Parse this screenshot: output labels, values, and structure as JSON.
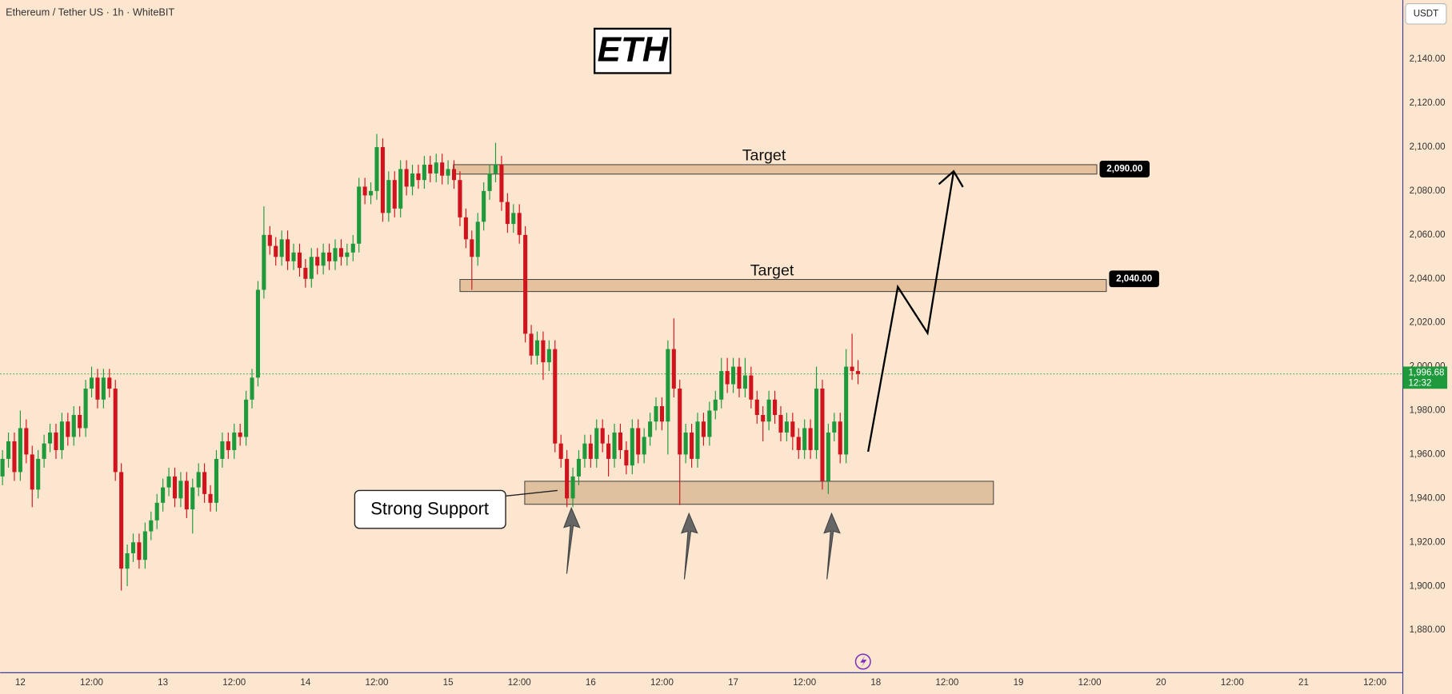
{
  "header": "Ethereum / Tether US · 1h · WhiteBIT",
  "chart_data": {
    "type": "candlestick",
    "title": "ETH",
    "currency": "USDT",
    "up_color": "#1e9a3c",
    "down_color": "#d0141e",
    "x": [
      -3,
      -2,
      -1,
      0,
      1,
      2,
      3,
      4,
      5,
      6,
      7,
      8,
      9,
      10,
      11,
      12,
      13,
      14,
      15,
      16,
      17,
      18,
      19,
      20,
      21,
      22,
      23,
      24,
      25,
      26,
      27,
      28,
      29,
      30,
      31,
      32,
      33,
      34,
      35,
      36,
      37,
      38,
      39,
      40,
      41,
      42,
      43,
      44,
      45,
      46,
      47,
      48,
      49,
      50,
      51,
      52,
      53,
      54,
      55,
      56,
      57,
      58,
      59,
      60,
      61,
      62,
      63,
      64,
      65,
      66,
      67,
      68,
      69,
      70,
      71,
      72,
      73,
      74,
      75,
      76,
      77,
      78,
      79,
      80,
      81,
      82,
      83,
      84,
      85,
      86,
      87,
      88,
      89,
      90,
      91,
      92,
      93,
      94,
      95,
      96,
      97,
      98,
      99,
      100,
      101,
      102,
      103,
      104,
      105,
      106,
      107,
      108,
      109,
      110,
      111,
      112,
      113,
      114,
      115,
      116,
      117,
      118,
      119,
      120,
      121,
      122,
      123,
      124,
      125,
      126,
      127,
      128,
      129,
      130,
      131,
      132,
      133,
      134,
      135,
      136,
      137,
      138,
      139,
      140,
      141
    ],
    "ohlc": [
      [
        1950,
        1962,
        1946,
        1958
      ],
      [
        1958,
        1970,
        1954,
        1966
      ],
      [
        1966,
        1970,
        1948,
        1952
      ],
      [
        1952,
        1980,
        1948,
        1972
      ],
      [
        1972,
        1976,
        1956,
        1960
      ],
      [
        1960,
        1964,
        1936,
        1944
      ],
      [
        1944,
        1962,
        1940,
        1958
      ],
      [
        1958,
        1969,
        1954,
        1965
      ],
      [
        1965,
        1974,
        1961,
        1970
      ],
      [
        1970,
        1974,
        1958,
        1962
      ],
      [
        1962,
        1979,
        1958,
        1975
      ],
      [
        1975,
        1979,
        1964,
        1968
      ],
      [
        1968,
        1982,
        1964,
        1978
      ],
      [
        1978,
        1982,
        1968,
        1972
      ],
      [
        1972,
        1994,
        1968,
        1990
      ],
      [
        1990,
        2000,
        1986,
        1995
      ],
      [
        1995,
        1999,
        1981,
        1985
      ],
      [
        1985,
        1999,
        1981,
        1995
      ],
      [
        1995,
        1999,
        1986,
        1990
      ],
      [
        1990,
        1994,
        1948,
        1952
      ],
      [
        1952,
        1956,
        1898,
        1908
      ],
      [
        1908,
        1919,
        1900,
        1915
      ],
      [
        1915,
        1924,
        1911,
        1920
      ],
      [
        1920,
        1924,
        1908,
        1912
      ],
      [
        1912,
        1929,
        1908,
        1925
      ],
      [
        1925,
        1934,
        1921,
        1930
      ],
      [
        1930,
        1942,
        1926,
        1938
      ],
      [
        1938,
        1949,
        1934,
        1945
      ],
      [
        1945,
        1954,
        1941,
        1950
      ],
      [
        1950,
        1954,
        1936,
        1940
      ],
      [
        1940,
        1952,
        1936,
        1948
      ],
      [
        1948,
        1952,
        1931,
        1935
      ],
      [
        1935,
        1949,
        1924,
        1945
      ],
      [
        1945,
        1956,
        1941,
        1952
      ],
      [
        1952,
        1956,
        1938,
        1942
      ],
      [
        1942,
        1946,
        1934,
        1938
      ],
      [
        1938,
        1962,
        1934,
        1958
      ],
      [
        1958,
        1970,
        1954,
        1966
      ],
      [
        1966,
        1970,
        1958,
        1962
      ],
      [
        1962,
        1974,
        1958,
        1970
      ],
      [
        1970,
        1974,
        1964,
        1968
      ],
      [
        1968,
        1989,
        1964,
        1985
      ],
      [
        1985,
        1999,
        1981,
        1995
      ],
      [
        1995,
        2039,
        1991,
        2035
      ],
      [
        2035,
        2073,
        2031,
        2060
      ],
      [
        2060,
        2064,
        2051,
        2055
      ],
      [
        2055,
        2059,
        2046,
        2050
      ],
      [
        2050,
        2062,
        2046,
        2058
      ],
      [
        2058,
        2062,
        2044,
        2048
      ],
      [
        2048,
        2056,
        2044,
        2052
      ],
      [
        2052,
        2056,
        2041,
        2045
      ],
      [
        2045,
        2049,
        2036,
        2040
      ],
      [
        2040,
        2054,
        2036,
        2050
      ],
      [
        2050,
        2054,
        2042,
        2046
      ],
      [
        2046,
        2056,
        2042,
        2052
      ],
      [
        2052,
        2056,
        2044,
        2048
      ],
      [
        2048,
        2058,
        2044,
        2054
      ],
      [
        2054,
        2058,
        2046,
        2050
      ],
      [
        2050,
        2056,
        2046,
        2052
      ],
      [
        2052,
        2060,
        2048,
        2056
      ],
      [
        2056,
        2086,
        2052,
        2082
      ],
      [
        2082,
        2086,
        2074,
        2078
      ],
      [
        2078,
        2084,
        2074,
        2080
      ],
      [
        2080,
        2106,
        2076,
        2100
      ],
      [
        2100,
        2104,
        2066,
        2070
      ],
      [
        2070,
        2089,
        2066,
        2085
      ],
      [
        2085,
        2089,
        2068,
        2072
      ],
      [
        2072,
        2094,
        2068,
        2090
      ],
      [
        2090,
        2094,
        2078,
        2082
      ],
      [
        2082,
        2092,
        2078,
        2088
      ],
      [
        2088,
        2092,
        2081,
        2085
      ],
      [
        2085,
        2096,
        2081,
        2092
      ],
      [
        2092,
        2096,
        2084,
        2088
      ],
      [
        2088,
        2097,
        2084,
        2093
      ],
      [
        2093,
        2097,
        2083,
        2087
      ],
      [
        2087,
        2094,
        2083,
        2090
      ],
      [
        2090,
        2094,
        2081,
        2085
      ],
      [
        2085,
        2089,
        2064,
        2068
      ],
      [
        2068,
        2072,
        2054,
        2058
      ],
      [
        2058,
        2062,
        2035,
        2050
      ],
      [
        2050,
        2070,
        2046,
        2066
      ],
      [
        2066,
        2084,
        2062,
        2080
      ],
      [
        2080,
        2092,
        2076,
        2088
      ],
      [
        2088,
        2102,
        2084,
        2092
      ],
      [
        2092,
        2096,
        2071,
        2075
      ],
      [
        2075,
        2079,
        2061,
        2065
      ],
      [
        2065,
        2074,
        2061,
        2070
      ],
      [
        2070,
        2074,
        2056,
        2060
      ],
      [
        2060,
        2064,
        2011,
        2015
      ],
      [
        2015,
        2019,
        2001,
        2005
      ],
      [
        2005,
        2016,
        2001,
        2012
      ],
      [
        2012,
        2016,
        1994,
        2002
      ],
      [
        2002,
        2012,
        1998,
        2008
      ],
      [
        2008,
        2012,
        1961,
        1965
      ],
      [
        1965,
        1969,
        1954,
        1958
      ],
      [
        1958,
        1962,
        1936,
        1940
      ],
      [
        1940,
        1954,
        1936,
        1950
      ],
      [
        1950,
        1962,
        1946,
        1958
      ],
      [
        1958,
        1969,
        1954,
        1965
      ],
      [
        1965,
        1969,
        1954,
        1958
      ],
      [
        1958,
        1976,
        1954,
        1972
      ],
      [
        1972,
        1976,
        1961,
        1965
      ],
      [
        1965,
        1969,
        1950,
        1958
      ],
      [
        1958,
        1974,
        1954,
        1970
      ],
      [
        1970,
        1974,
        1958,
        1962
      ],
      [
        1962,
        1966,
        1951,
        1955
      ],
      [
        1955,
        1976,
        1951,
        1972
      ],
      [
        1972,
        1976,
        1956,
        1960
      ],
      [
        1960,
        1972,
        1956,
        1968
      ],
      [
        1968,
        1979,
        1964,
        1975
      ],
      [
        1975,
        1986,
        1971,
        1982
      ],
      [
        1982,
        1986,
        1971,
        1975
      ],
      [
        1975,
        2012,
        1960,
        2008
      ],
      [
        2008,
        2022,
        1986,
        1990
      ],
      [
        1990,
        1994,
        1937,
        1960
      ],
      [
        1960,
        1974,
        1956,
        1970
      ],
      [
        1970,
        1974,
        1954,
        1958
      ],
      [
        1958,
        1979,
        1954,
        1975
      ],
      [
        1975,
        1979,
        1964,
        1968
      ],
      [
        1968,
        1984,
        1964,
        1980
      ],
      [
        1980,
        1989,
        1976,
        1985
      ],
      [
        1985,
        2004,
        1981,
        1998
      ],
      [
        1998,
        2004,
        1988,
        1992
      ],
      [
        1992,
        2004,
        1988,
        2000
      ],
      [
        2000,
        2004,
        1986,
        1990
      ],
      [
        1990,
        2004,
        1986,
        1996
      ],
      [
        1996,
        2000,
        1981,
        1985
      ],
      [
        1985,
        1989,
        1974,
        1978
      ],
      [
        1978,
        1982,
        1966,
        1975
      ],
      [
        1975,
        1989,
        1971,
        1985
      ],
      [
        1985,
        1989,
        1974,
        1978
      ],
      [
        1978,
        1982,
        1966,
        1970
      ],
      [
        1970,
        1979,
        1966,
        1975
      ],
      [
        1975,
        1979,
        1962,
        1968
      ],
      [
        1968,
        1972,
        1958,
        1962
      ],
      [
        1962,
        1976,
        1958,
        1972
      ],
      [
        1972,
        1976,
        1958,
        1962
      ],
      [
        1962,
        2000,
        1958,
        1990
      ],
      [
        1990,
        1994,
        1944,
        1948
      ],
      [
        1948,
        1974,
        1942,
        1970
      ],
      [
        1970,
        1979,
        1966,
        1975
      ],
      [
        1975,
        1979,
        1956,
        1960
      ],
      [
        1960,
        2008,
        1956,
        2000
      ],
      [
        2000,
        2015,
        1994,
        1998
      ],
      [
        1998,
        2003,
        1992,
        1996.68
      ]
    ],
    "xlim": [
      -3.4,
      232.7
    ],
    "xticks": [
      {
        "value": 0,
        "label": "12"
      },
      {
        "value": 12,
        "label": "12:00"
      },
      {
        "value": 24,
        "label": "13"
      },
      {
        "value": 36,
        "label": "12:00"
      },
      {
        "value": 48,
        "label": "14"
      },
      {
        "value": 60,
        "label": "12:00"
      },
      {
        "value": 72,
        "label": "15"
      },
      {
        "value": 84,
        "label": "12:00"
      },
      {
        "value": 96,
        "label": "16"
      },
      {
        "value": 108,
        "label": "12:00"
      },
      {
        "value": 120,
        "label": "17"
      },
      {
        "value": 132,
        "label": "12:00"
      },
      {
        "value": 144,
        "label": "18"
      },
      {
        "value": 156,
        "label": "12:00"
      },
      {
        "value": 168,
        "label": "19"
      },
      {
        "value": 180,
        "label": "12:00"
      },
      {
        "value": 192,
        "label": "20"
      },
      {
        "value": 204,
        "label": "12:00"
      },
      {
        "value": 216,
        "label": "21"
      },
      {
        "value": 228,
        "label": "12:00"
      }
    ],
    "ylim": [
      1860.6,
      2167
    ],
    "yticks": [
      {
        "value": 1880,
        "label": "1,880.00"
      },
      {
        "value": 1900,
        "label": "1,900.00"
      },
      {
        "value": 1920,
        "label": "1,920.00"
      },
      {
        "value": 1940,
        "label": "1,940.00"
      },
      {
        "value": 1960,
        "label": "1,960.00"
      },
      {
        "value": 1980,
        "label": "1,980.00"
      },
      {
        "value": 2000,
        "label": "2,000.00"
      },
      {
        "value": 2020,
        "label": "2,020.00"
      },
      {
        "value": 2040,
        "label": "2,040.00"
      },
      {
        "value": 2060,
        "label": "2,060.00"
      },
      {
        "value": 2080,
        "label": "2,080.00"
      },
      {
        "value": 2100,
        "label": "2,100.00"
      },
      {
        "value": 2120,
        "label": "2,120.00"
      },
      {
        "value": 2140,
        "label": "2,140.00"
      }
    ],
    "last_price": {
      "value": 1996.68,
      "label": "1,996.68",
      "countdown": "12:32"
    },
    "zones": [
      {
        "label": "Target",
        "price": {
          "value": 2090,
          "label": "2,090.00"
        },
        "range": [
          2087.7,
          2092
        ],
        "x_range": [
          72.9,
          181.2
        ]
      },
      {
        "label": "Target",
        "price": {
          "value": 2040,
          "label": "2,040.00"
        },
        "range": [
          2034.2,
          2039.7
        ],
        "x_range": [
          74.0,
          182.8
        ]
      }
    ],
    "support": {
      "label": "Strong Support",
      "range": [
        1937.3,
        1947.8
      ],
      "x_range": [
        84.9,
        163.8
      ]
    },
    "projection": {
      "x": [
        142.7,
        147.7,
        152.7,
        157.1
      ],
      "y": [
        1961.3,
        2036.3,
        2015.3,
        2089
      ]
    }
  }
}
